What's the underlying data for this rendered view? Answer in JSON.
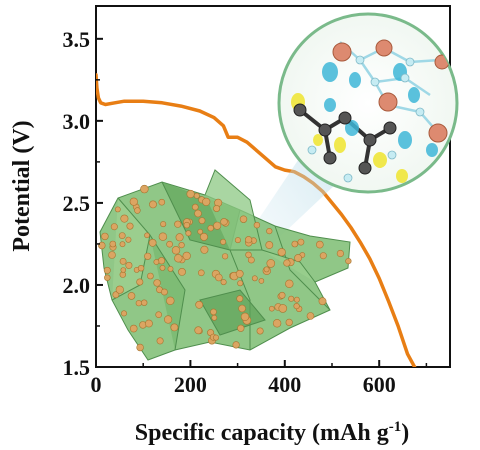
{
  "chart_data": {
    "type": "line",
    "xlabel": "Specific capacity (mAh g",
    "xlabel_sup": "-1",
    "xlabel_close": ")",
    "ylabel": "Potential (V)",
    "xlim": [
      0,
      750
    ],
    "ylim": [
      1.5,
      3.7
    ],
    "x_ticks": [
      0,
      200,
      400,
      600
    ],
    "x_tick_labels": [
      "0",
      "200",
      "400",
      "600"
    ],
    "y_ticks": [
      1.5,
      2.0,
      2.5,
      3.0,
      3.5
    ],
    "y_tick_labels": [
      "1.5",
      "2.0",
      "2.5",
      "3.0",
      "3.5"
    ],
    "grid": false,
    "series": [
      {
        "color": "#e87e14",
        "x": [
          0,
          2,
          5,
          10,
          20,
          40,
          60,
          100,
          140,
          180,
          220,
          250,
          270,
          280,
          300,
          320,
          340,
          360,
          380,
          400,
          420,
          440,
          460,
          480,
          500,
          520,
          540,
          560,
          580,
          600,
          620,
          640,
          660,
          675
        ],
        "y": [
          3.28,
          3.2,
          3.14,
          3.11,
          3.1,
          3.11,
          3.12,
          3.12,
          3.11,
          3.09,
          3.06,
          3.02,
          2.97,
          2.9,
          2.9,
          2.87,
          2.82,
          2.77,
          2.72,
          2.7,
          2.69,
          2.66,
          2.62,
          2.57,
          2.5,
          2.43,
          2.35,
          2.26,
          2.16,
          2.04,
          1.9,
          1.75,
          1.58,
          1.5
        ]
      }
    ]
  },
  "colors": {
    "curve": "#e87e14",
    "graphene": "#5fae5a",
    "particle": "#d9a45a",
    "inset_border": "#78b888"
  }
}
